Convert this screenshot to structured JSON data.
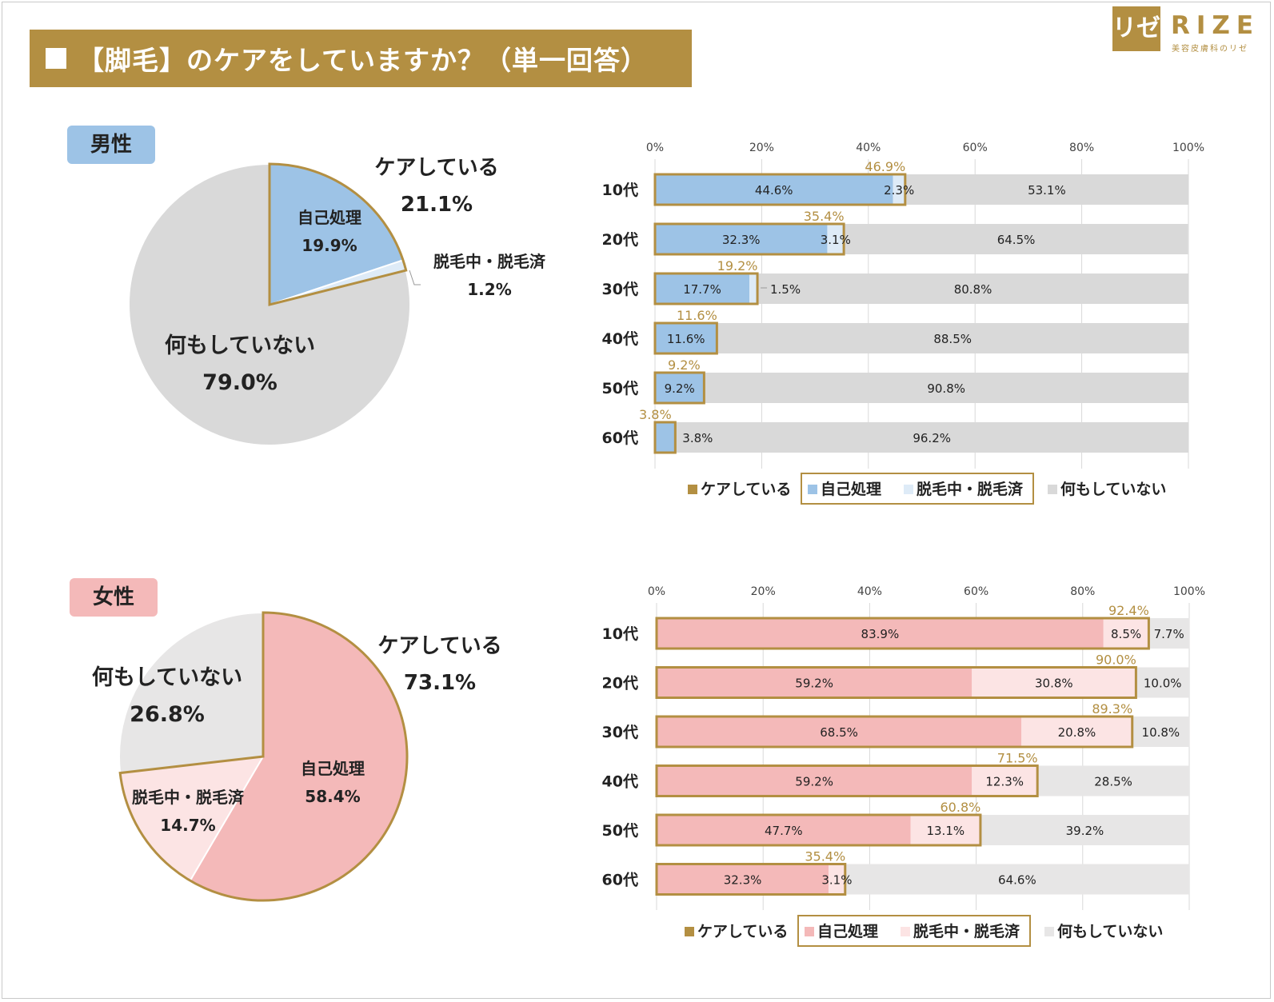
{
  "title": "【脚毛】のケアをしていますか？（単一回答）",
  "logo": {
    "mark": "リゼ",
    "name": "RIZE",
    "sub": "美容皮膚科のリゼ"
  },
  "colors": {
    "gold": "#b38f42",
    "male_self": "#9dc3e6",
    "male_removal": "#deebf7",
    "female_self": "#f4b9b9",
    "female_removal": "#fce4e4",
    "nothing": "#d9d9d9",
    "nothing_female": "#e7e6e6"
  },
  "chart_data": [
    {
      "type": "pie",
      "section": "男性",
      "slices": [
        {
          "label": "自己処理",
          "value": 19.9,
          "value_label": "19.9%"
        },
        {
          "label": "脱毛中・脱毛済",
          "value": 1.2,
          "value_label": "1.2%"
        },
        {
          "label": "何もしていない",
          "value": 79.0,
          "value_label": "79.0%"
        }
      ],
      "group_label": "ケアしている",
      "group_value": "21.1%"
    },
    {
      "type": "bar",
      "orientation": "horizontal-stacked",
      "section": "男性",
      "axis_ticks": [
        "0%",
        "20%",
        "40%",
        "60%",
        "80%",
        "100%"
      ],
      "xlim": [
        0,
        100
      ],
      "categories": [
        "10代",
        "20代",
        "30代",
        "40代",
        "50代",
        "60代"
      ],
      "series": [
        {
          "name": "自己処理",
          "values": [
            44.6,
            32.3,
            17.7,
            11.6,
            9.2,
            3.8
          ],
          "labels": [
            "44.6%",
            "32.3%",
            "17.7%",
            "11.6%",
            "9.2%",
            "3.8%"
          ]
        },
        {
          "name": "脱毛中・脱毛済",
          "values": [
            2.3,
            3.1,
            1.5,
            0,
            0,
            0
          ],
          "labels": [
            "2.3%",
            "3.1%",
            "1.5%",
            "",
            "",
            ""
          ]
        },
        {
          "name": "何もしていない",
          "values": [
            53.1,
            64.5,
            80.8,
            88.5,
            90.8,
            96.2
          ],
          "labels": [
            "53.1%",
            "64.5%",
            "80.8%",
            "88.5%",
            "90.8%",
            "96.2%"
          ]
        }
      ],
      "care_totals": [
        46.9,
        35.4,
        19.2,
        11.6,
        9.2,
        3.8
      ],
      "care_total_labels": [
        "46.9%",
        "35.4%",
        "19.2%",
        "11.6%",
        "9.2%",
        "3.8%"
      ],
      "legend": [
        "ケアしている",
        "自己処理",
        "脱毛中・脱毛済",
        "何もしていない"
      ]
    },
    {
      "type": "pie",
      "section": "女性",
      "slices": [
        {
          "label": "自己処理",
          "value": 58.4,
          "value_label": "58.4%"
        },
        {
          "label": "脱毛中・脱毛済",
          "value": 14.7,
          "value_label": "14.7%"
        },
        {
          "label": "何もしていない",
          "value": 26.8,
          "value_label": "26.8%"
        }
      ],
      "group_label": "ケアしている",
      "group_value": "73.1%"
    },
    {
      "type": "bar",
      "orientation": "horizontal-stacked",
      "section": "女性",
      "axis_ticks": [
        "0%",
        "20%",
        "40%",
        "60%",
        "80%",
        "100%"
      ],
      "xlim": [
        0,
        100
      ],
      "categories": [
        "10代",
        "20代",
        "30代",
        "40代",
        "50代",
        "60代"
      ],
      "series": [
        {
          "name": "自己処理",
          "values": [
            83.9,
            59.2,
            68.5,
            59.2,
            47.7,
            32.3
          ],
          "labels": [
            "83.9%",
            "59.2%",
            "68.5%",
            "59.2%",
            "47.7%",
            "32.3%"
          ]
        },
        {
          "name": "脱毛中・脱毛済",
          "values": [
            8.5,
            30.8,
            20.8,
            12.3,
            13.1,
            3.1
          ],
          "labels": [
            "8.5%",
            "30.8%",
            "20.8%",
            "12.3%",
            "13.1%",
            "3.1%"
          ]
        },
        {
          "name": "何もしていない",
          "values": [
            7.7,
            10.0,
            10.8,
            28.5,
            39.2,
            64.6
          ],
          "labels": [
            "7.7%",
            "10.0%",
            "10.8%",
            "28.5%",
            "39.2%",
            "64.6%"
          ]
        }
      ],
      "care_totals": [
        92.4,
        90.0,
        89.3,
        71.5,
        60.8,
        35.4
      ],
      "care_total_labels": [
        "92.4%",
        "90.0%",
        "89.3%",
        "71.5%",
        "60.8%",
        "35.4%"
      ],
      "legend": [
        "ケアしている",
        "自己処理",
        "脱毛中・脱毛済",
        "何もしていない"
      ]
    }
  ]
}
